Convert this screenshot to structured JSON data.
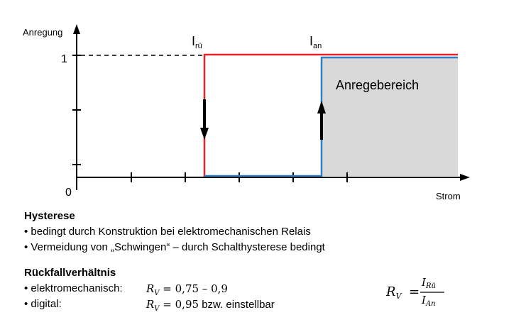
{
  "diagram": {
    "y_axis_label": "Anregung",
    "x_axis_label": "Strom",
    "y_tick_one": "1",
    "origin_label": "0",
    "i_rue_main": "I",
    "i_rue_sub": "rü",
    "i_an_main": "I",
    "i_an_sub": "an",
    "region_label": "Anregebereich",
    "colors": {
      "drop_out": "#e8202a",
      "pick_up": "#2e7fc4",
      "region_fill": "#d9d9d9"
    }
  },
  "hysterese": {
    "title": "Hysterese",
    "bullets": [
      "• bedingt durch Konstruktion bei elektromechanischen Relais",
      "• Vermeidung von „Schwingen“ – durch Schalthysterese bedingt"
    ]
  },
  "rueckfall": {
    "title": "Rückfallverhältnis",
    "rows": [
      {
        "label": "• elektromechanisch:",
        "formula": "R",
        "formula_sub": "V",
        "value": " = 0,75 – 0,9",
        "suffix": ""
      },
      {
        "label": "• digital:",
        "formula": "R",
        "formula_sub": "V",
        "value": " = 0,95",
        "suffix": " bzw. einstellbar"
      }
    ]
  },
  "ratio_formula": {
    "lhs": "R",
    "lhs_sub": "V",
    "eq": "=",
    "num": "I",
    "num_sub": "Rü",
    "den": "I",
    "den_sub": "An"
  }
}
